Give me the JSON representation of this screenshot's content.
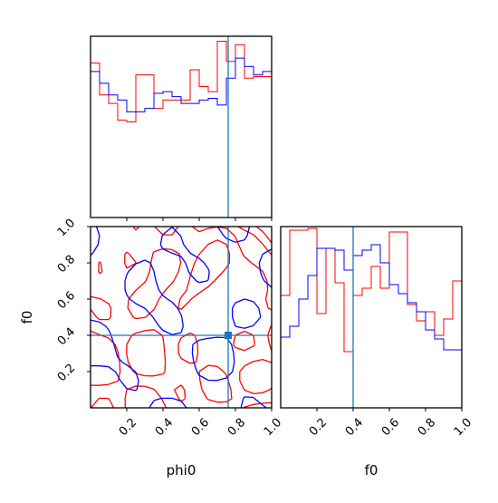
{
  "chart_data": {
    "type": "corner",
    "parameters": [
      "phi0",
      "f0"
    ],
    "xlabels": {
      "phi0": "phi0",
      "f0": "f0"
    },
    "ylabels": {
      "f0": "f0"
    },
    "tick_labels": [
      "0.2",
      "0.4",
      "0.6",
      "0.8",
      "1.0"
    ],
    "colors": {
      "series_a": "#ff0000",
      "series_b": "#0000ff",
      "truth": "#1f77b4"
    },
    "truth": {
      "phi0": 0.76,
      "f0": 0.4
    },
    "panels": [
      {
        "type": "histogram",
        "parameter": "phi0",
        "xlim": [
          0,
          1
        ],
        "ylim": [
          0,
          1.08
        ],
        "bins": 20,
        "series": [
          {
            "color": "series_a",
            "values": [
              0.92,
              0.73,
              0.68,
              0.58,
              0.57,
              0.85,
              0.85,
              0.65,
              0.7,
              0.7,
              0.7,
              0.88,
              0.78,
              0.75,
              1.05,
              0.93,
              1.03,
              0.83,
              0.84,
              0.84
            ]
          },
          {
            "color": "series_b",
            "values": [
              0.87,
              0.8,
              0.73,
              0.7,
              0.63,
              0.63,
              0.65,
              0.74,
              0.75,
              0.72,
              0.68,
              0.68,
              0.7,
              0.71,
              0.67,
              0.83,
              0.95,
              0.9,
              0.85,
              0.87
            ]
          }
        ]
      },
      {
        "type": "contour",
        "parameters": [
          "phi0",
          "f0"
        ],
        "xlim": [
          0,
          1
        ],
        "ylim": [
          0,
          1
        ],
        "series": [
          "series_a",
          "series_b"
        ]
      },
      {
        "type": "histogram",
        "parameter": "f0",
        "xlim": [
          0,
          1
        ],
        "ylim": [
          0,
          1.0
        ],
        "bins": 20,
        "series": [
          {
            "color": "series_a",
            "values": [
              0.62,
              0.98,
              0.98,
              0.99,
              0.52,
              0.88,
              0.69,
              0.31,
              0.62,
              0.66,
              0.78,
              0.66,
              0.97,
              0.97,
              0.57,
              0.48,
              0.53,
              0.4,
              0.49,
              0.7
            ]
          },
          {
            "color": "series_b",
            "values": [
              0.39,
              0.45,
              0.6,
              0.73,
              0.88,
              0.88,
              0.87,
              0.76,
              0.84,
              0.87,
              0.9,
              0.8,
              0.68,
              0.63,
              0.58,
              0.53,
              0.43,
              0.38,
              0.32,
              0.32
            ]
          }
        ]
      }
    ]
  }
}
